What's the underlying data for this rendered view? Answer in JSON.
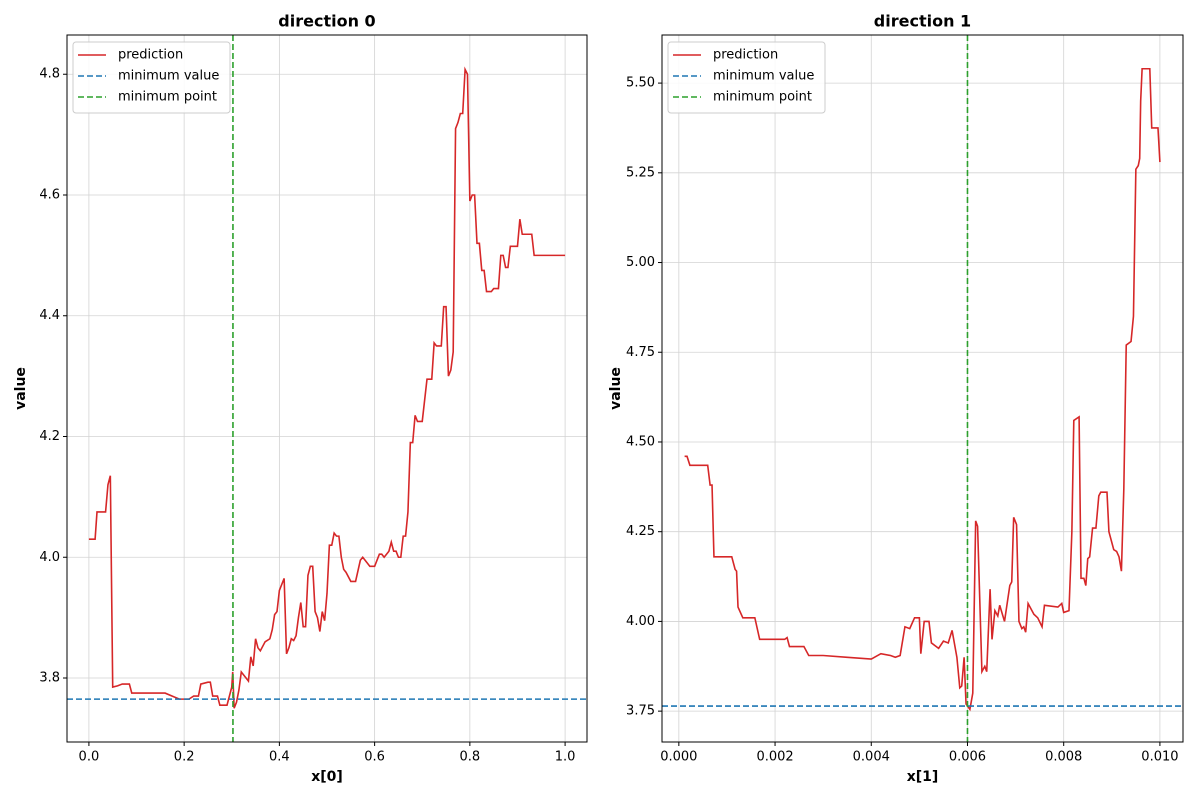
{
  "chart_data": [
    {
      "type": "line",
      "title": "direction 0",
      "xlabel": "x[0]",
      "ylabel": "value",
      "x": [
        0.0,
        0.013,
        0.017,
        0.035,
        0.04,
        0.045,
        0.05,
        0.06,
        0.07,
        0.085,
        0.09,
        0.16,
        0.175,
        0.19,
        0.21,
        0.22,
        0.23,
        0.235,
        0.25,
        0.255,
        0.26,
        0.27,
        0.275,
        0.29,
        0.3,
        0.302,
        0.305,
        0.31,
        0.315,
        0.32,
        0.33,
        0.335,
        0.34,
        0.345,
        0.35,
        0.355,
        0.36,
        0.37,
        0.38,
        0.385,
        0.39,
        0.395,
        0.4,
        0.41,
        0.415,
        0.42,
        0.425,
        0.43,
        0.435,
        0.44,
        0.445,
        0.45,
        0.455,
        0.46,
        0.465,
        0.47,
        0.475,
        0.48,
        0.485,
        0.49,
        0.495,
        0.5,
        0.505,
        0.51,
        0.515,
        0.52,
        0.525,
        0.53,
        0.535,
        0.54,
        0.55,
        0.56,
        0.57,
        0.575,
        0.58,
        0.59,
        0.6,
        0.61,
        0.615,
        0.62,
        0.63,
        0.635,
        0.64,
        0.645,
        0.65,
        0.655,
        0.66,
        0.665,
        0.67,
        0.675,
        0.68,
        0.685,
        0.69,
        0.7,
        0.71,
        0.72,
        0.725,
        0.73,
        0.74,
        0.745,
        0.75,
        0.755,
        0.76,
        0.765,
        0.77,
        0.775,
        0.78,
        0.785,
        0.79,
        0.795,
        0.8,
        0.805,
        0.81,
        0.815,
        0.82,
        0.825,
        0.83,
        0.835,
        0.845,
        0.85,
        0.86,
        0.865,
        0.87,
        0.875,
        0.88,
        0.885,
        0.9,
        0.905,
        0.91,
        0.93,
        0.935,
        1.0
      ],
      "series": [
        {
          "name": "prediction",
          "color": "#d62728",
          "values": [
            4.03,
            4.03,
            4.075,
            4.075,
            4.12,
            4.135,
            3.785,
            3.787,
            3.79,
            3.79,
            3.775,
            3.775,
            3.77,
            3.765,
            3.765,
            3.77,
            3.77,
            3.79,
            3.793,
            3.793,
            3.77,
            3.77,
            3.755,
            3.755,
            3.785,
            3.81,
            3.75,
            3.76,
            3.78,
            3.81,
            3.8,
            3.795,
            3.835,
            3.82,
            3.865,
            3.85,
            3.845,
            3.86,
            3.865,
            3.88,
            3.905,
            3.91,
            3.945,
            3.965,
            3.84,
            3.85,
            3.865,
            3.862,
            3.87,
            3.9,
            3.925,
            3.885,
            3.885,
            3.97,
            3.985,
            3.985,
            3.91,
            3.9,
            3.877,
            3.91,
            3.895,
            3.94,
            4.02,
            4.02,
            4.04,
            4.035,
            4.035,
            4.0,
            3.98,
            3.975,
            3.96,
            3.96,
            3.995,
            4.0,
            3.995,
            3.985,
            3.985,
            4.005,
            4.005,
            4.0,
            4.01,
            4.025,
            4.01,
            4.01,
            4.0,
            4.0,
            4.035,
            4.035,
            4.075,
            4.19,
            4.19,
            4.235,
            4.225,
            4.225,
            4.295,
            4.295,
            4.355,
            4.35,
            4.35,
            4.415,
            4.415,
            4.3,
            4.31,
            4.34,
            4.71,
            4.72,
            4.735,
            4.735,
            4.808,
            4.8,
            4.59,
            4.6,
            4.6,
            4.52,
            4.52,
            4.475,
            4.475,
            4.44,
            4.44,
            4.445,
            4.445,
            4.5,
            4.5,
            4.48,
            4.48,
            4.515,
            4.515,
            4.56,
            4.535,
            4.535,
            4.5,
            4.5
          ]
        }
      ],
      "hline": {
        "name": "minimum value",
        "color": "#1f77b4",
        "value": 3.765
      },
      "vline": {
        "name": "minimum point",
        "color": "#2ca02c",
        "value": 0.3025
      },
      "xlim": [
        -0.046,
        1.046
      ],
      "ylim": [
        3.694,
        4.865
      ],
      "xticks": [
        {
          "value": 0,
          "label": "0.0"
        },
        0.2,
        0.4,
        0.6,
        0.8,
        {
          "value": 1,
          "label": "1.0"
        }
      ],
      "yticks": [
        3.8,
        {
          "value": 4,
          "label": "4.0"
        },
        4.2,
        4.4,
        4.6,
        4.8
      ],
      "grid": true,
      "legend": "upper left"
    },
    {
      "type": "line",
      "title": "direction 1",
      "xlabel": "x[1]",
      "ylabel": "value",
      "x": [
        0.00012,
        0.00017,
        0.00023,
        0.0006,
        0.00065,
        0.00069,
        0.00073,
        0.0011,
        0.00117,
        0.0012,
        0.00123,
        0.00133,
        0.00158,
        0.00168,
        0.0022,
        0.00225,
        0.0023,
        0.0026,
        0.0027,
        0.003,
        0.0035,
        0.004,
        0.0042,
        0.0044,
        0.0045,
        0.0046,
        0.0047,
        0.0048,
        0.0049,
        0.005,
        0.00503,
        0.0051,
        0.0052,
        0.00525,
        0.0054,
        0.0055,
        0.0056,
        0.00568,
        0.00578,
        0.00584,
        0.00588,
        0.00593,
        0.00597,
        0.00605,
        0.00611,
        0.00617,
        0.00621,
        0.0063,
        0.00636,
        0.0064,
        0.00647,
        0.00651,
        0.00657,
        0.00663,
        0.00667,
        0.00677,
        0.00688,
        0.00692,
        0.00696,
        0.00702,
        0.00707,
        0.00713,
        0.00717,
        0.00721,
        0.00726,
        0.00738,
        0.00746,
        0.00755,
        0.0076,
        0.00788,
        0.00796,
        0.008,
        0.00811,
        0.00817,
        0.00821,
        0.00832,
        0.00836,
        0.00842,
        0.00846,
        0.0085,
        0.00854,
        0.0086,
        0.00867,
        0.00873,
        0.00877,
        0.0089,
        0.00894,
        0.00904,
        0.0091,
        0.00915,
        0.0092,
        0.00925,
        0.0093,
        0.0094,
        0.00945,
        0.0095,
        0.00955,
        0.00958,
        0.0096,
        0.00963,
        0.00979,
        0.00983,
        0.00996,
        0.01
      ],
      "series": [
        {
          "name": "prediction",
          "color": "#d62728",
          "values": [
            4.46,
            4.46,
            4.435,
            4.435,
            4.38,
            4.38,
            4.18,
            4.18,
            4.145,
            4.14,
            4.04,
            4.01,
            4.01,
            3.95,
            3.95,
            3.955,
            3.93,
            3.93,
            3.905,
            3.905,
            3.9,
            3.895,
            3.91,
            3.905,
            3.9,
            3.905,
            3.985,
            3.98,
            4.01,
            4.01,
            3.91,
            4.0,
            4.0,
            3.94,
            3.925,
            3.945,
            3.94,
            3.975,
            3.9,
            3.815,
            3.82,
            3.9,
            3.77,
            3.755,
            3.8,
            4.28,
            4.265,
            3.86,
            3.875,
            3.86,
            4.09,
            3.95,
            4.03,
            4.015,
            4.045,
            4.0,
            4.1,
            4.11,
            4.29,
            4.27,
            4.0,
            3.98,
            3.985,
            3.97,
            4.05,
            4.02,
            4.01,
            3.985,
            4.045,
            4.04,
            4.05,
            4.025,
            4.03,
            4.25,
            4.56,
            4.57,
            4.12,
            4.12,
            4.1,
            4.175,
            4.18,
            4.26,
            4.26,
            4.35,
            4.36,
            4.36,
            4.25,
            4.2,
            4.195,
            4.18,
            4.14,
            4.37,
            4.77,
            4.78,
            4.85,
            5.26,
            5.27,
            5.29,
            5.45,
            5.54,
            5.54,
            5.375,
            5.375,
            5.28
          ]
        }
      ],
      "hline": {
        "name": "minimum value",
        "color": "#1f77b4",
        "value": 3.764
      },
      "vline": {
        "name": "minimum point",
        "color": "#2ca02c",
        "value": 0.006
      },
      "xlim": [
        -0.00035,
        0.01048
      ],
      "ylim": [
        3.664,
        5.634
      ],
      "xticks": [
        {
          "value": 0,
          "label": "0.000"
        },
        {
          "value": 0.002,
          "label": "0.002"
        },
        {
          "value": 0.004,
          "label": "0.004"
        },
        {
          "value": 0.006,
          "label": "0.006"
        },
        {
          "value": 0.008,
          "label": "0.008"
        },
        {
          "value": 0.01,
          "label": "0.010"
        }
      ],
      "yticks": [
        3.75,
        {
          "value": 4,
          "label": "4.00"
        },
        4.25,
        {
          "value": 4.5,
          "label": "4.50"
        },
        4.75,
        {
          "value": 5,
          "label": "5.00"
        },
        5.25,
        {
          "value": 5.5,
          "label": "5.50"
        }
      ],
      "grid": true,
      "legend": "upper left"
    }
  ]
}
